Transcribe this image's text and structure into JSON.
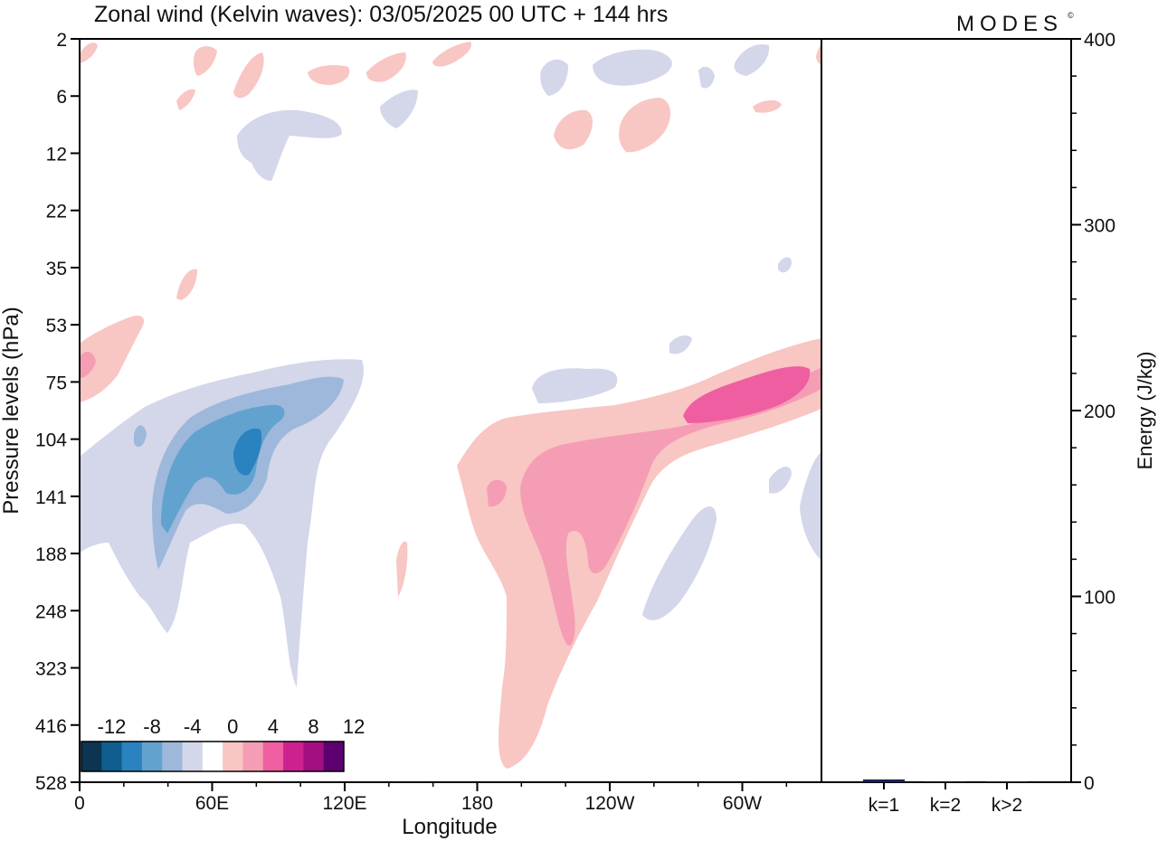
{
  "title": "Zonal wind (Kelvin waves):  03/05/2025  00 UTC  + 144 hrs",
  "brand": "MODES",
  "brand_mark": "©",
  "chart_data": [
    {
      "type": "heatmap",
      "variable": "Zonal wind (Kelvin waves)",
      "xlabel": "Longitude",
      "ylabel": "Pressure levels (hPa)",
      "x_ticks": [
        "0",
        "60E",
        "120E",
        "180",
        "120W",
        "60W"
      ],
      "y_ticks": [
        "2",
        "6",
        "12",
        "22",
        "35",
        "53",
        "75",
        "104",
        "141",
        "188",
        "248",
        "323",
        "416",
        "528"
      ],
      "colorbar": {
        "labels": [
          "-12",
          "-8",
          "-4",
          "0",
          "4",
          "8",
          "12"
        ],
        "levels": [
          -14,
          -12,
          -10,
          -8,
          -6,
          -4,
          -2,
          2,
          4,
          6,
          8,
          10,
          12,
          14
        ],
        "colors": [
          "#0b3550",
          "#0f5e8f",
          "#2a82be",
          "#62a2cf",
          "#9db8da",
          "#d4d6ea",
          "#ffffff",
          "#f8c6c3",
          "#f59db4",
          "#ee5ea0",
          "#cd2190",
          "#a30e80",
          "#5c0070"
        ]
      },
      "regions": [
        {
          "sign": "negative",
          "value": -2,
          "location": "0–130E, 75–300 hPa"
        },
        {
          "sign": "negative",
          "value": -4,
          "location": "35–120E, 80–200 hPa"
        },
        {
          "sign": "negative",
          "value": -6,
          "location": "40–95E, 95–150 hPa"
        },
        {
          "sign": "negative",
          "value": -8,
          "location": "72–85E, 100–125 hPa"
        },
        {
          "sign": "positive",
          "value": 2,
          "location": "170E–0, 75–500 hPa"
        },
        {
          "sign": "positive",
          "value": 4,
          "location": "160W–20W, 80–300 hPa"
        },
        {
          "sign": "positive",
          "value": 6,
          "location": "60W–10W, 75–105 hPa"
        }
      ]
    },
    {
      "type": "bar",
      "categories": [
        "k=1",
        "k=2",
        "k>2"
      ],
      "values": [
        1.5,
        0.3,
        0.5
      ],
      "ylabel": "Energy (J/kg)",
      "y_ticks": [
        "0",
        "100",
        "200",
        "300",
        "400"
      ],
      "ylim": [
        0,
        400
      ]
    }
  ]
}
